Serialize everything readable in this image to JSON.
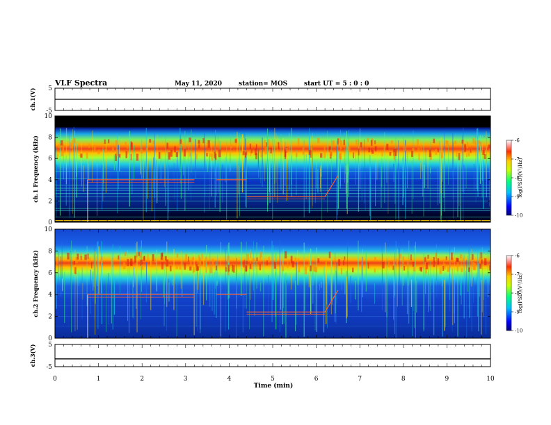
{
  "header": {
    "title": "VLF Spectra",
    "date": "May 11, 2020",
    "station": "station= MOS",
    "start": "start UT =  5 : 0 : 0"
  },
  "chart_data": [
    {
      "type": "line",
      "panel": "ch.1 voltage",
      "ylabel": "ch.1(V)",
      "ylim": [
        -5,
        5
      ],
      "yticks": [
        "5",
        "-5"
      ],
      "xlim": [
        0,
        10
      ],
      "series": [
        {
          "x": [
            0,
            10
          ],
          "values": [
            0,
            0
          ]
        }
      ]
    },
    {
      "type": "heatmap",
      "panel": "ch.1 spectrogram",
      "ylabel": "ch.1 Frequency (kHz)",
      "ylim": [
        0,
        10
      ],
      "yticks": [
        "0",
        "2",
        "4",
        "6",
        "8",
        "10"
      ],
      "xlim": [
        0,
        10
      ],
      "colorbar": {
        "label": "log(PSD)(V²/Hz)",
        "range": [
          -10,
          -6
        ],
        "ticks": [
          "-6",
          "-7",
          "-8",
          "-9",
          "-10"
        ]
      },
      "features": {
        "band_center_khz": 7,
        "tone_start_min": 0.75,
        "tone_end_min": 6.5,
        "tone_gap_min": [
          3.2,
          3.7
        ],
        "tone_high_khz": 4.0,
        "tone_low_khz": 2.4,
        "tone_step_min": 4.4
      }
    },
    {
      "type": "heatmap",
      "panel": "ch.2 spectrogram",
      "ylabel": "ch.2 Frequency (kHz)",
      "ylim": [
        0,
        10
      ],
      "yticks": [
        "0",
        "2",
        "4",
        "6",
        "8",
        "10"
      ],
      "xlim": [
        0,
        10
      ],
      "colorbar": {
        "label": "log(PSD)(V²/Hz)",
        "range": [
          -10,
          -6
        ],
        "ticks": [
          "-6",
          "-7",
          "-8",
          "-9",
          "-10"
        ]
      },
      "features": {
        "band_center_khz": 7,
        "tone_start_min": 0.75,
        "tone_end_min": 6.5,
        "tone_gap_min": [
          3.2,
          3.7
        ],
        "tone_high_khz": 4.0,
        "tone_low_khz": 2.4,
        "tone_step_min": 4.4
      }
    },
    {
      "type": "line",
      "panel": "ch.3 voltage",
      "ylabel": "ch.3(V)",
      "ylim": [
        -5,
        5
      ],
      "yticks": [
        "5",
        "-5"
      ],
      "xlim": [
        0,
        10
      ],
      "series": [
        {
          "x": [
            0,
            10
          ],
          "values": [
            -1.5,
            -1.5
          ]
        }
      ]
    }
  ],
  "xaxis": {
    "label": "Time (min)",
    "ticks": [
      "0",
      "1",
      "2",
      "3",
      "4",
      "5",
      "6",
      "7",
      "8",
      "9",
      "10"
    ]
  },
  "colors": {
    "line": "#000000",
    "background": "#ffffff"
  }
}
